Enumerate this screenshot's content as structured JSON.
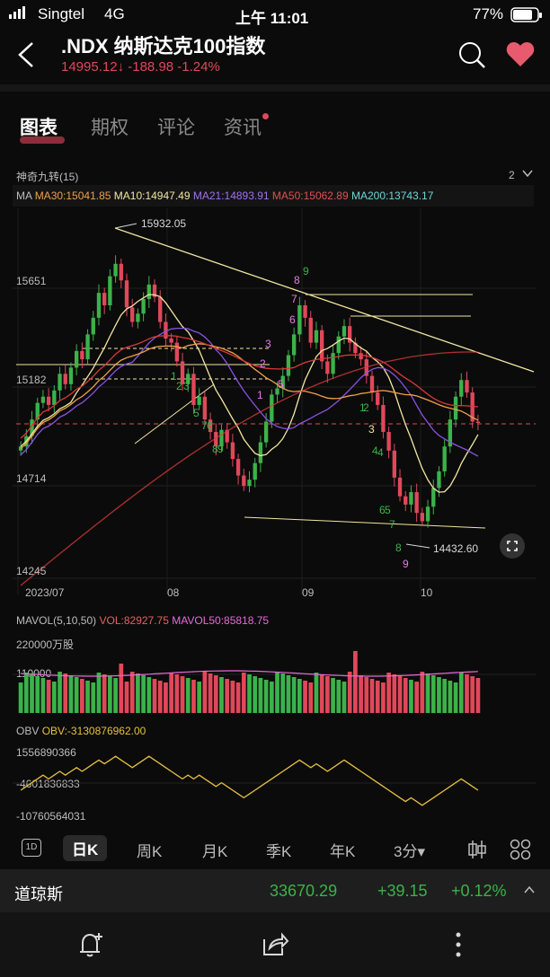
{
  "status": {
    "carrier": "Singtel",
    "network": "4G",
    "time": "上午 11:01",
    "battery": "77%"
  },
  "header": {
    "title": ".NDX  纳斯达克100指数",
    "price": "14995.12",
    "arrow": "↓",
    "change": "-188.98",
    "change_pct": "-1.24%"
  },
  "tabs": [
    {
      "label": "图表"
    },
    {
      "label": "期权"
    },
    {
      "label": "评论"
    },
    {
      "label": "资讯"
    }
  ],
  "indicator": {
    "name": "神奇九转(15)",
    "count": "2"
  },
  "ma_legend": {
    "ma": "MA",
    "ma30": "MA30:15041.85",
    "ma10": "MA10:14947.49",
    "ma21": "MA21:14893.91",
    "ma50": "MA50:15062.89",
    "ma200": "MA200:13743.17"
  },
  "colors": {
    "up": "#3cb24a",
    "down": "#e0485a",
    "ma30": "#f0a04b",
    "ma10": "#f2e6a0",
    "ma21": "#8a53e0",
    "ma50": "#d83a3a",
    "ma200": "#6ed6d6",
    "obv": "#e6c040",
    "mavol50": "#e86ad6"
  },
  "chart_data": {
    "type": "candlestick",
    "y_ticks": [
      "15651",
      "15182",
      "14714",
      "14245"
    ],
    "x_ticks": [
      "2023/07",
      "08",
      "09",
      "10"
    ],
    "annotations": {
      "high": "15932.05",
      "low": "14432.60"
    },
    "ylim": [
      14245,
      15932
    ],
    "closes": [
      14880,
      14930,
      15010,
      15090,
      15120,
      15080,
      15150,
      15230,
      15180,
      15260,
      15340,
      15300,
      15420,
      15500,
      15620,
      15560,
      15700,
      15760,
      15680,
      15550,
      15480,
      15520,
      15590,
      15660,
      15600,
      15480,
      15400,
      15380,
      15290,
      15180,
      15230,
      15080,
      15120,
      15010,
      14950,
      14880,
      14960,
      14900,
      14820,
      14740,
      14690,
      14720,
      14800,
      14900,
      15000,
      15130,
      15160,
      15220,
      15320,
      15420,
      15560,
      15500,
      15380,
      15440,
      15290,
      15230,
      15330,
      15410,
      15460,
      15380,
      15330,
      15300,
      15220,
      15140,
      15080,
      14950,
      14860,
      14730,
      14640,
      14600,
      14660,
      14560,
      14520,
      14590,
      14680,
      14760,
      14880,
      15010,
      15120,
      15200,
      15140,
      15000,
      14995
    ],
    "signal_labels": [
      "3",
      "2",
      "1",
      "5",
      "4",
      "3",
      "2",
      "1",
      "6",
      "7",
      "8",
      "9",
      "7",
      "8",
      "9",
      "6",
      "5",
      "3",
      "2",
      "1",
      "4",
      "5",
      "6",
      "7",
      "8",
      "9"
    ]
  },
  "mavol": {
    "label": "MAVOL(5,10,50)",
    "vol": "VOL:82927.75",
    "mavol50": "MAVOL50:85818.75",
    "tick_high": "220000万股",
    "tick_mid": "110000"
  },
  "obv": {
    "label": "OBV",
    "value": "OBV:-3130876962.00",
    "ticks": [
      "1556890366",
      "-4601836833",
      "-10760564031"
    ]
  },
  "periods": [
    {
      "label": "日K"
    },
    {
      "label": "周K"
    },
    {
      "label": "月K"
    },
    {
      "label": "季K"
    },
    {
      "label": "年K"
    },
    {
      "label": "3分▾"
    }
  ],
  "related": {
    "name": "道琼斯",
    "price": "33670.29",
    "change": "+39.15",
    "change_pct": "+0.12%"
  }
}
